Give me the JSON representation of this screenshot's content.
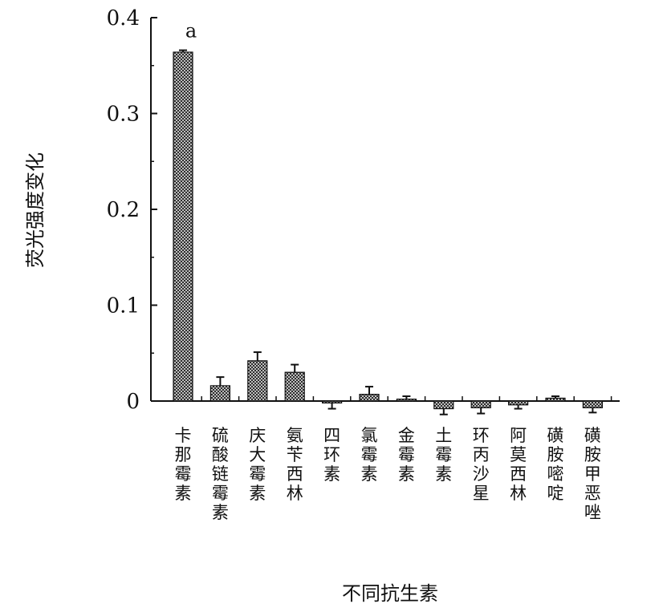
{
  "chart_data": {
    "type": "bar",
    "ylabel": "荧光强度变化",
    "xlabel": "不同抗生素",
    "ylim": [
      0,
      0.4
    ],
    "yticks": [
      0,
      0.1,
      0.2,
      0.3,
      0.4
    ],
    "ytick_labels": [
      "0",
      "0.1",
      "0.2",
      "0.3",
      "0.4"
    ],
    "grid": false,
    "categories": [
      "卡那霉素",
      "硫酸链霉素",
      "庆大霉素",
      "氨苄西林",
      "四环素",
      "氯霉素",
      "金霉素",
      "土霉素",
      "环丙沙星",
      "阿莫西林",
      "磺胺嘧啶",
      "磺胺甲恶唑"
    ],
    "values": [
      0.364,
      0.016,
      0.042,
      0.03,
      -0.002,
      0.007,
      0.002,
      -0.008,
      -0.007,
      -0.004,
      0.003,
      -0.007
    ],
    "errors": [
      0.002,
      0.009,
      0.009,
      0.008,
      0.006,
      0.008,
      0.003,
      0.006,
      0.006,
      0.004,
      0.002,
      0.005
    ],
    "annotations": [
      {
        "category": "卡那霉素",
        "text": "a"
      }
    ],
    "bar_pattern": "crosshatch",
    "colors": {
      "bar_fill": "#ffffff",
      "bar_hatch": "#222222",
      "axis": "#111111"
    }
  }
}
